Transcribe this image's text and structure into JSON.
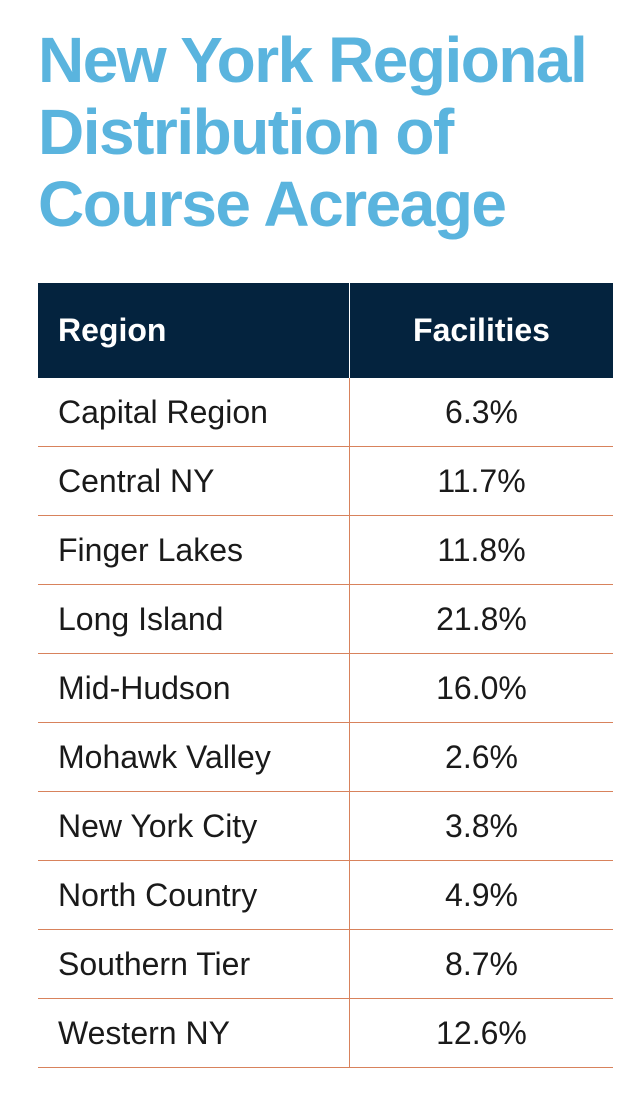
{
  "chart_data": {
    "type": "table",
    "title": "New York Regional Distribution of Course Acreage",
    "columns": [
      "Region",
      "Facilities"
    ],
    "rows": [
      {
        "region": "Capital Region",
        "facilities": "6.3%"
      },
      {
        "region": "Central NY",
        "facilities": "11.7%"
      },
      {
        "region": "Finger Lakes",
        "facilities": "11.8%"
      },
      {
        "region": "Long Island",
        "facilities": "21.8%"
      },
      {
        "region": "Mid-Hudson",
        "facilities": "16.0%"
      },
      {
        "region": "Mohawk Valley",
        "facilities": "2.6%"
      },
      {
        "region": "New York City",
        "facilities": "3.8%"
      },
      {
        "region": "North Country",
        "facilities": "4.9%"
      },
      {
        "region": "Southern Tier",
        "facilities": "8.7%"
      },
      {
        "region": "Western NY",
        "facilities": "12.6%"
      }
    ],
    "colors": {
      "title": "#5ab4de",
      "header_bg": "#04233e",
      "header_text": "#ffffff",
      "row_divider": "#d8825c"
    }
  }
}
